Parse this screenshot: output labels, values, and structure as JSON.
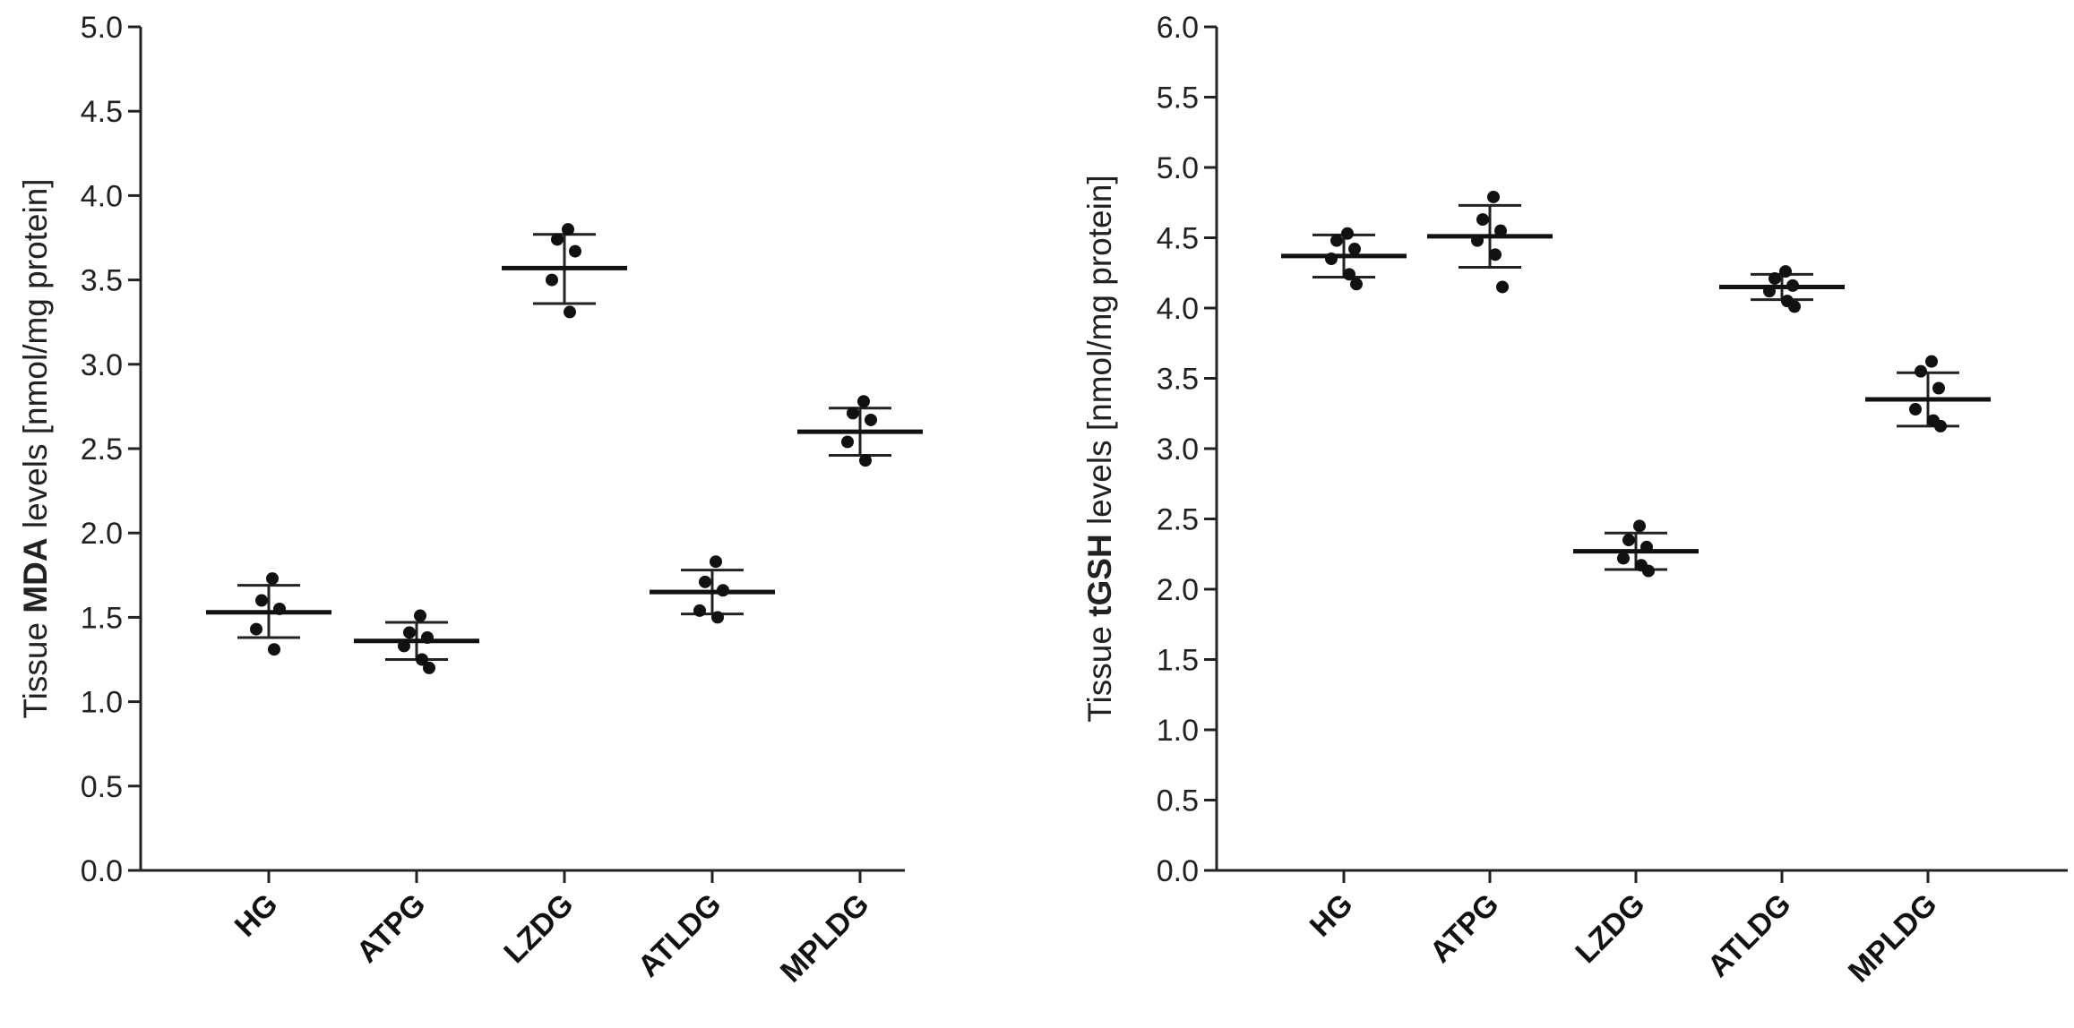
{
  "chart_data": [
    {
      "type": "scatter",
      "title": "",
      "xlabel": "",
      "ylabel": {
        "prefix": "Tissue ",
        "bold": "MDA",
        "suffix": " levels [nmol/mg protein]"
      },
      "ylim": [
        0,
        5
      ],
      "yticks": [
        "0.0",
        "0.5",
        "1.0",
        "1.5",
        "2.0",
        "2.5",
        "3.0",
        "3.5",
        "4.0",
        "4.5",
        "5.0"
      ],
      "categories": [
        "HG",
        "ATPG",
        "LZDG",
        "ATLDG",
        "MPLDG"
      ],
      "groups": [
        {
          "name": "HG",
          "mean": 1.53,
          "sd_low": 1.38,
          "sd_high": 1.69,
          "points": [
            1.73,
            1.6,
            1.55,
            1.43,
            1.31
          ]
        },
        {
          "name": "ATPG",
          "mean": 1.36,
          "sd_low": 1.25,
          "sd_high": 1.47,
          "points": [
            1.51,
            1.41,
            1.38,
            1.33,
            1.25,
            1.2
          ]
        },
        {
          "name": "LZDG",
          "mean": 3.57,
          "sd_low": 3.36,
          "sd_high": 3.77,
          "points": [
            3.8,
            3.74,
            3.67,
            3.5,
            3.31
          ]
        },
        {
          "name": "ATLDG",
          "mean": 1.65,
          "sd_low": 1.52,
          "sd_high": 1.78,
          "points": [
            1.83,
            1.71,
            1.66,
            1.54,
            1.5
          ]
        },
        {
          "name": "MPLDG",
          "mean": 2.6,
          "sd_low": 2.46,
          "sd_high": 2.74,
          "points": [
            2.78,
            2.71,
            2.67,
            2.54,
            2.43
          ]
        }
      ]
    },
    {
      "type": "scatter",
      "title": "",
      "xlabel": "",
      "ylabel": {
        "prefix": "Tissue ",
        "bold": "tGSH",
        "suffix": " levels [nmol/mg protein]"
      },
      "ylim": [
        0,
        6
      ],
      "yticks": [
        "0.0",
        "0.5",
        "1.0",
        "1.5",
        "2.0",
        "2.5",
        "3.0",
        "3.5",
        "4.0",
        "4.5",
        "5.0",
        "5.5",
        "6.0"
      ],
      "categories": [
        "HG",
        "ATPG",
        "LZDG",
        "ATLDG",
        "MPLDG"
      ],
      "groups": [
        {
          "name": "HG",
          "mean": 4.37,
          "sd_low": 4.22,
          "sd_high": 4.52,
          "points": [
            4.53,
            4.48,
            4.42,
            4.35,
            4.24,
            4.17
          ]
        },
        {
          "name": "ATPG",
          "mean": 4.51,
          "sd_low": 4.29,
          "sd_high": 4.73,
          "points": [
            4.79,
            4.63,
            4.55,
            4.48,
            4.38,
            4.15
          ]
        },
        {
          "name": "LZDG",
          "mean": 2.27,
          "sd_low": 2.14,
          "sd_high": 2.4,
          "points": [
            2.45,
            2.35,
            2.3,
            2.22,
            2.17,
            2.13
          ]
        },
        {
          "name": "ATLDG",
          "mean": 4.15,
          "sd_low": 4.06,
          "sd_high": 4.24,
          "points": [
            4.26,
            4.21,
            4.16,
            4.12,
            4.05,
            4.01
          ]
        },
        {
          "name": "MPLDG",
          "mean": 3.35,
          "sd_low": 3.16,
          "sd_high": 3.54,
          "points": [
            3.62,
            3.55,
            3.43,
            3.28,
            3.2,
            3.16
          ]
        }
      ]
    }
  ]
}
